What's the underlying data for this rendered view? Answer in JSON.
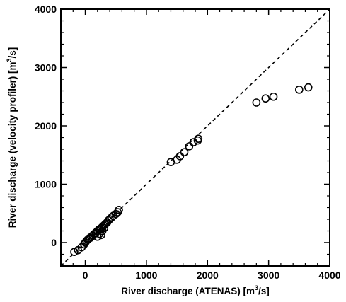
{
  "chart_data": {
    "type": "scatter",
    "xlabel": {
      "pre": "River discharge (ATENAS) [m",
      "sup": "3",
      "post": "/s]"
    },
    "ylabel": {
      "pre": "River discharge (velocity profiler) [m",
      "sup": "3",
      "post": "/s]"
    },
    "xlim": [
      -400,
      4000
    ],
    "ylim": [
      -400,
      4000
    ],
    "x_ticks": [
      0,
      1000,
      2000,
      3000,
      4000
    ],
    "y_ticks": [
      0,
      1000,
      2000,
      3000,
      4000
    ],
    "x_tick_labels": [
      "0",
      "1000",
      "2000",
      "3000",
      "4000"
    ],
    "y_tick_labels": [
      "0",
      "1000",
      "2000",
      "3000",
      "4000"
    ],
    "grid": false,
    "reference_line": {
      "style": "dashed",
      "x": [
        -400,
        4000
      ],
      "y": [
        -400,
        4000
      ]
    },
    "series": [
      {
        "marker": "open-circle",
        "x": [
          -180,
          -120,
          -60,
          -20,
          0,
          20,
          40,
          60,
          80,
          100,
          120,
          150,
          170,
          200,
          220,
          240,
          260,
          280,
          300,
          320,
          340,
          360,
          380,
          400,
          430,
          460,
          500,
          530,
          550,
          200,
          230,
          260,
          280,
          310,
          1400,
          1500,
          1550,
          1620,
          1700,
          1770,
          1840,
          1850,
          2800,
          2950,
          3080,
          3500,
          3650
        ],
        "y": [
          -160,
          -130,
          -80,
          -30,
          0,
          30,
          50,
          70,
          80,
          100,
          120,
          150,
          170,
          200,
          220,
          230,
          250,
          270,
          290,
          310,
          330,
          350,
          380,
          400,
          430,
          460,
          490,
          520,
          560,
          100,
          150,
          130,
          200,
          250,
          1380,
          1420,
          1480,
          1550,
          1650,
          1720,
          1750,
          1780,
          2400,
          2470,
          2500,
          2620,
          2660
        ]
      }
    ]
  }
}
